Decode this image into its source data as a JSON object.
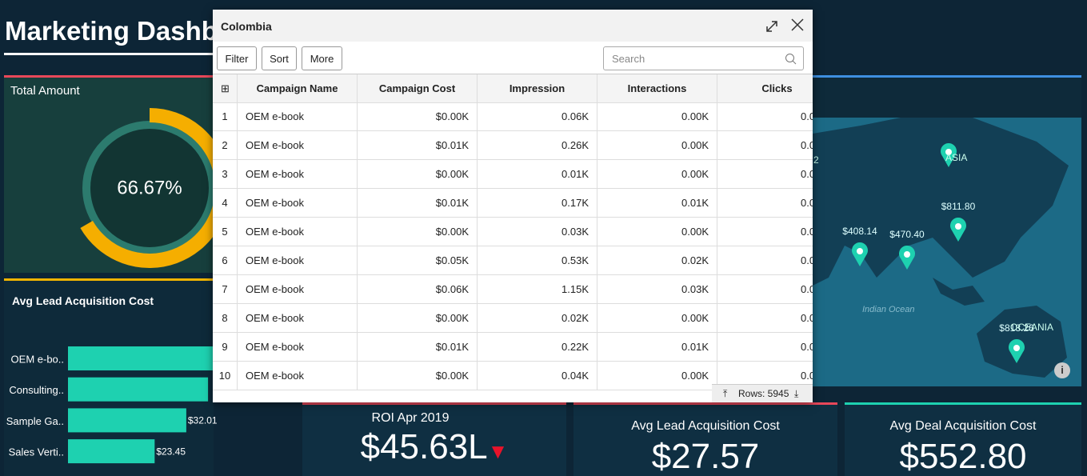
{
  "header": {
    "title": "Marketing Dashboard"
  },
  "total_amount": {
    "title": "Total Amount",
    "value": 66.67,
    "value_label": "66.67%"
  },
  "lead_cost_chart": {
    "title": "Avg Lead Acquisition Cost",
    "categories": [
      "OEM e-bo..",
      "Consulting..",
      "Sample Ga..",
      "Sales Verti.."
    ],
    "values": [
      45,
      37.9,
      32.01,
      23.45
    ],
    "value_labels": [
      null,
      null,
      "$32.01",
      "$23.45"
    ],
    "color": "#1ed1b0"
  },
  "map": {
    "regions": [
      "ASIA",
      "OCEANIA"
    ],
    "ocean": "Indian Ocean",
    "edge_label": "2",
    "markers": [
      "$408.14",
      "$470.40",
      "$811.80",
      "$818.26"
    ]
  },
  "kpis": [
    {
      "title": "ROI Apr 2019",
      "value": "$45.63L"
    },
    {
      "title": "Avg Lead Acquisition Cost",
      "value": "$27.57"
    },
    {
      "title": "Avg Deal Acquisition Cost",
      "value": "$552.80"
    }
  ],
  "modal": {
    "title": "Colombia",
    "buttons": [
      "Filter",
      "Sort",
      "More"
    ],
    "search_placeholder": "Search",
    "columns": [
      "Campaign Name",
      "Campaign Cost",
      "Impression",
      "Interactions",
      "Clicks"
    ],
    "rows": [
      [
        1,
        "OEM e-book",
        "$0.00K",
        "0.06K",
        "0.00K",
        "0.0"
      ],
      [
        2,
        "OEM e-book",
        "$0.01K",
        "0.26K",
        "0.00K",
        "0.0"
      ],
      [
        3,
        "OEM e-book",
        "$0.00K",
        "0.01K",
        "0.00K",
        "0.0"
      ],
      [
        4,
        "OEM e-book",
        "$0.01K",
        "0.17K",
        "0.01K",
        "0.0"
      ],
      [
        5,
        "OEM e-book",
        "$0.00K",
        "0.03K",
        "0.00K",
        "0.0"
      ],
      [
        6,
        "OEM e-book",
        "$0.05K",
        "0.53K",
        "0.02K",
        "0.0"
      ],
      [
        7,
        "OEM e-book",
        "$0.06K",
        "1.15K",
        "0.03K",
        "0.0"
      ],
      [
        8,
        "OEM e-book",
        "$0.00K",
        "0.02K",
        "0.00K",
        "0.0"
      ],
      [
        9,
        "OEM e-book",
        "$0.01K",
        "0.22K",
        "0.01K",
        "0.0"
      ],
      [
        10,
        "OEM e-book",
        "$0.00K",
        "0.04K",
        "0.00K",
        "0.0"
      ]
    ],
    "footer": "Rows: 5945"
  }
}
